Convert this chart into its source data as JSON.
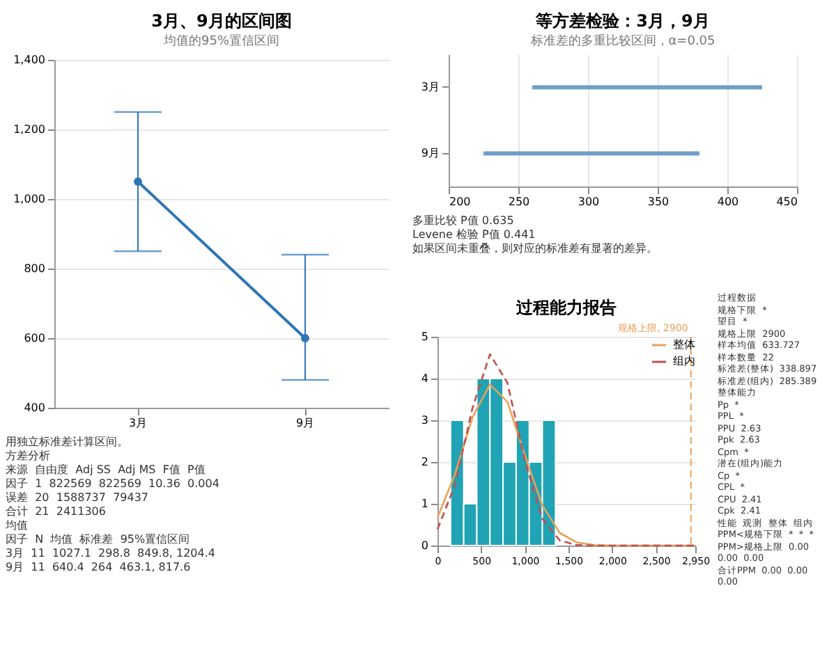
{
  "chart_data": [
    {
      "type": "line",
      "title": "3月、9月的区间图",
      "subtitle": "均值的95%置信区间",
      "categories": [
        "3月",
        "9月"
      ],
      "series": [
        {
          "color": "#2e75b6",
          "values": [
            1050,
            600
          ],
          "errors": [
            [
              850,
              1250
            ],
            [
              480,
              840
            ]
          ]
        }
      ],
      "ylim": [
        400,
        1400
      ],
      "yticks": [
        400,
        600,
        800,
        {
          "value": 1000,
          "label": "1,000"
        },
        {
          "value": 1200,
          "label": "1,200"
        },
        {
          "value": 1400,
          "label": "1,400"
        }
      ],
      "grid": "y",
      "marker": "circle",
      "annotations": [
        "用独立标准差计算区间。",
        "方差分析",
        "来源  自由度  Adj SS  Adj MS  F值  P值",
        "因子  1  822569  822569  10.36  0.004",
        "误差  20  1588737  79437",
        "合计  21  2411306",
        "均值",
        "因子  N  均值  标准差  95%置信区间",
        "3月  11  1027.1  298.8  849.8, 1204.4",
        "9月  11  640.4  264  463.1, 817.6"
      ]
    },
    {
      "type": "bar",
      "orientation": "horizontal",
      "title": "等方差检验：3月，9月",
      "subtitle": "标准差的多重比较区间，α=0.05",
      "categories": [
        "3月",
        "9月"
      ],
      "base": [
        260,
        225
      ],
      "values": [
        165,
        155
      ],
      "color": "#6f9fc8",
      "xlim": [
        200,
        450
      ],
      "xticks": [
        200,
        250,
        300,
        350,
        400,
        450
      ],
      "grid": "x",
      "annotations": [
        "多重比较 P值 0.635",
        "Levene 检验 P值 0.441",
        "如果区间未重叠，则对应的标准差有显著的差异。"
      ]
    },
    {
      "type": "histogram",
      "title": "过程能力报告",
      "bins": [
        150,
        300,
        450,
        600,
        750,
        900,
        1050,
        1200,
        1350
      ],
      "values": [
        3,
        1,
        4,
        4,
        2,
        3,
        2,
        3
      ],
      "color": "#1fa3b5",
      "series": [
        {
          "type": "line",
          "name": "整体",
          "color": "#e8a15a",
          "line_style": "solid",
          "x": [
            0,
            200,
            400,
            600,
            800,
            1000,
            1200,
            1400,
            1600,
            1800,
            2000,
            2500,
            2950
          ],
          "values": [
            0.67,
            1.71,
            3.07,
            3.86,
            3.44,
            2.16,
            0.96,
            0.3,
            0.07,
            0.01,
            0,
            0,
            0
          ]
        },
        {
          "type": "line",
          "name": "组内",
          "color": "#c0504d",
          "line_style": "dashed",
          "x": [
            0,
            200,
            400,
            600,
            800,
            1000,
            1200,
            1400,
            1600,
            1800,
            2000,
            2500,
            2950
          ],
          "values": [
            0.39,
            1.45,
            3.29,
            4.58,
            3.9,
            2.03,
            0.64,
            0.12,
            0.01,
            0,
            0,
            0,
            0
          ]
        }
      ],
      "xlim": [
        0,
        2950
      ],
      "xticks": [
        0,
        500,
        {
          "value": 1000,
          "label": "1,000"
        },
        {
          "value": 1500,
          "label": "1,500"
        },
        {
          "value": 2000,
          "label": "2,000"
        },
        {
          "value": 2500,
          "label": "2,500"
        },
        {
          "value": 2950,
          "label": "2,950"
        }
      ],
      "ylim": [
        0,
        5
      ],
      "yticks": [
        0,
        1,
        2,
        3,
        4,
        5
      ],
      "grid": "y",
      "legend": "top right",
      "ref_lines": [
        {
          "axis": "x",
          "value": 2900,
          "label": "规格上限, 2900",
          "color": "#e8a15a",
          "line_style": "dashed"
        }
      ],
      "annotations": [
        "过程数据",
        "规格下限  *",
        "望目  *",
        "规格上限  2900",
        "样本均值  633.727",
        "样本数量  22",
        "标准差(整体)  338.897",
        "标准差(组内)  285.389",
        "整体能力",
        "Pp  *",
        "PPL  *",
        "PPU  2.63",
        "Ppk  2.63",
        "Cpm  *",
        "潜在(组内)能力",
        "Cp  *",
        "CPL  *",
        "CPU  2.41",
        "Cpk  2.41",
        "性能  观测  整体  组内",
        "PPM<规格下限  *  *  *",
        "PPM>规格上限  0.00  0.00  0.00",
        "合计PPM  0.00  0.00  0.00"
      ]
    }
  ]
}
